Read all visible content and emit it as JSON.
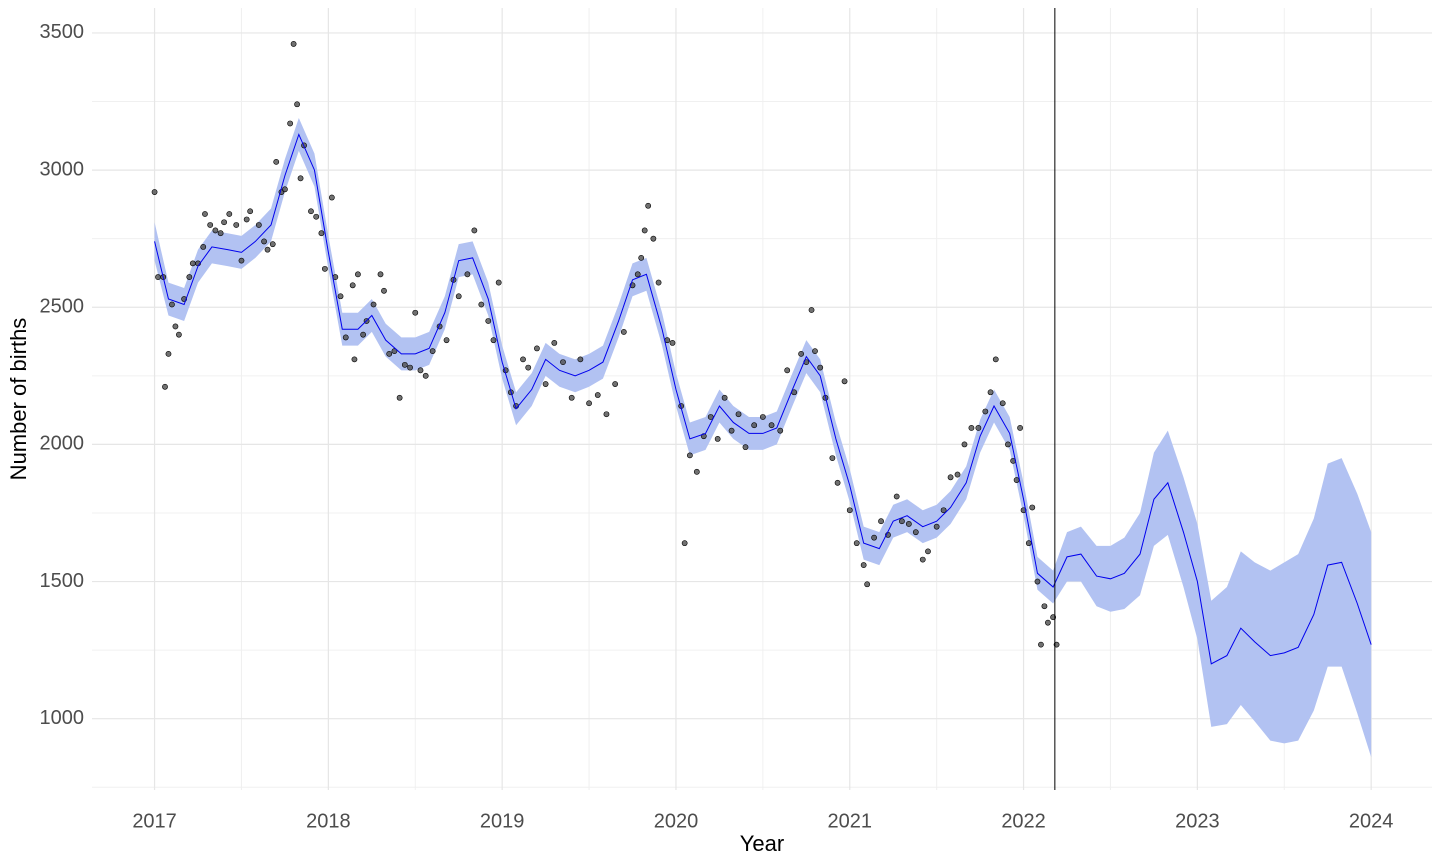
{
  "chart_data": {
    "type": "forecast",
    "x_label": "Year",
    "y_label": "Number of births",
    "xlim": [
      2016.64,
      2024.35
    ],
    "ylim": [
      740,
      3591
    ],
    "xticks": [
      2017,
      2018,
      2019,
      2020,
      2021,
      2022,
      2023,
      2024
    ],
    "yticks": [
      1000,
      1500,
      2000,
      2500,
      3000,
      3500
    ],
    "xminorticks": [
      2017.5,
      2018.5,
      2019.5,
      2020.5,
      2021.5,
      2022.5,
      2023.5
    ],
    "yminorticks": [
      750,
      1250,
      1750,
      2250,
      2750,
      3250
    ],
    "grid": true,
    "cutoff": 2022.18,
    "forecast": {
      "color": "#0000ee",
      "band_color": "#b2c2f2",
      "x": [
        2017,
        2017.08,
        2017.17,
        2017.25,
        2017.33,
        2017.42,
        2017.5,
        2017.58,
        2017.67,
        2017.75,
        2017.83,
        2017.92,
        2018,
        2018.08,
        2018.17,
        2018.25,
        2018.33,
        2018.42,
        2018.5,
        2018.58,
        2018.67,
        2018.75,
        2018.83,
        2018.92,
        2019,
        2019.08,
        2019.17,
        2019.25,
        2019.33,
        2019.42,
        2019.5,
        2019.58,
        2019.67,
        2019.75,
        2019.83,
        2019.92,
        2020,
        2020.08,
        2020.17,
        2020.25,
        2020.33,
        2020.42,
        2020.5,
        2020.58,
        2020.67,
        2020.75,
        2020.83,
        2020.92,
        2021,
        2021.08,
        2021.17,
        2021.25,
        2021.33,
        2021.42,
        2021.5,
        2021.58,
        2021.67,
        2021.75,
        2021.83,
        2021.92,
        2022,
        2022.08,
        2022.17,
        2022.25,
        2022.33,
        2022.42,
        2022.5,
        2022.58,
        2022.67,
        2022.75,
        2022.83,
        2022.92,
        2023,
        2023.08,
        2023.17,
        2023.25,
        2023.33,
        2023.42,
        2023.5,
        2023.58,
        2023.67,
        2023.75,
        2023.83,
        2023.92,
        2024
      ],
      "values": [
        2740,
        2530,
        2510,
        2650,
        2720,
        2710,
        2700,
        2740,
        2800,
        2980,
        3130,
        3000,
        2700,
        2420,
        2420,
        2470,
        2380,
        2330,
        2330,
        2350,
        2480,
        2670,
        2680,
        2530,
        2300,
        2130,
        2200,
        2310,
        2270,
        2250,
        2270,
        2300,
        2450,
        2600,
        2620,
        2420,
        2200,
        2020,
        2040,
        2140,
        2080,
        2040,
        2040,
        2060,
        2200,
        2320,
        2250,
        2020,
        1850,
        1640,
        1620,
        1720,
        1740,
        1700,
        1720,
        1770,
        1860,
        2030,
        2140,
        2040,
        1800,
        1530,
        1480,
        1590,
        1600,
        1520,
        1510,
        1530,
        1600,
        1800,
        1860,
        1680,
        1500,
        1200,
        1230,
        1330,
        1280,
        1230,
        1240,
        1260,
        1380,
        1560,
        1570,
        1420,
        1270
      ],
      "lower": [
        2670,
        2470,
        2450,
        2590,
        2660,
        2650,
        2640,
        2680,
        2740,
        2920,
        3070,
        2940,
        2640,
        2360,
        2360,
        2410,
        2320,
        2270,
        2270,
        2290,
        2420,
        2610,
        2620,
        2470,
        2240,
        2070,
        2140,
        2250,
        2210,
        2190,
        2210,
        2240,
        2390,
        2540,
        2560,
        2360,
        2140,
        1960,
        1980,
        2080,
        2020,
        1980,
        1980,
        2000,
        2140,
        2260,
        2190,
        1960,
        1790,
        1580,
        1560,
        1660,
        1680,
        1640,
        1660,
        1710,
        1800,
        1970,
        2080,
        1980,
        1740,
        1470,
        1420,
        1500,
        1500,
        1410,
        1390,
        1400,
        1450,
        1630,
        1670,
        1480,
        1290,
        970,
        980,
        1050,
        990,
        920,
        910,
        920,
        1030,
        1190,
        1190,
        1020,
        860
      ],
      "upper": [
        2810,
        2590,
        2570,
        2710,
        2780,
        2770,
        2760,
        2800,
        2860,
        3040,
        3190,
        3060,
        2760,
        2480,
        2480,
        2530,
        2440,
        2390,
        2390,
        2410,
        2540,
        2730,
        2740,
        2590,
        2360,
        2190,
        2260,
        2370,
        2330,
        2310,
        2330,
        2360,
        2510,
        2660,
        2680,
        2480,
        2260,
        2080,
        2100,
        2200,
        2140,
        2100,
        2100,
        2120,
        2260,
        2380,
        2310,
        2080,
        1910,
        1700,
        1680,
        1780,
        1800,
        1760,
        1780,
        1830,
        1920,
        2090,
        2200,
        2100,
        1860,
        1590,
        1540,
        1680,
        1700,
        1630,
        1630,
        1660,
        1750,
        1970,
        2050,
        1880,
        1710,
        1430,
        1480,
        1610,
        1570,
        1540,
        1570,
        1600,
        1730,
        1930,
        1950,
        1820,
        1680
      ]
    },
    "points": {
      "color": "#4d4d4d",
      "x": [
        2017.0,
        2017.02,
        2017.05,
        2017.06,
        2017.08,
        2017.1,
        2017.12,
        2017.14,
        2017.17,
        2017.2,
        2017.22,
        2017.25,
        2017.28,
        2017.29,
        2017.32,
        2017.35,
        2017.38,
        2017.4,
        2017.43,
        2017.47,
        2017.5,
        2017.53,
        2017.55,
        2017.6,
        2017.63,
        2017.65,
        2017.68,
        2017.7,
        2017.73,
        2017.75,
        2017.78,
        2017.8,
        2017.82,
        2017.84,
        2017.86,
        2017.9,
        2017.93,
        2017.96,
        2017.98,
        2018.02,
        2018.04,
        2018.07,
        2018.1,
        2018.14,
        2018.15,
        2018.17,
        2018.2,
        2018.22,
        2018.26,
        2018.3,
        2018.32,
        2018.35,
        2018.38,
        2018.41,
        2018.44,
        2018.47,
        2018.5,
        2018.53,
        2018.56,
        2018.6,
        2018.64,
        2018.68,
        2018.72,
        2018.75,
        2018.8,
        2018.84,
        2018.88,
        2018.92,
        2018.95,
        2018.98,
        2019.02,
        2019.05,
        2019.08,
        2019.12,
        2019.15,
        2019.2,
        2019.25,
        2019.3,
        2019.35,
        2019.4,
        2019.45,
        2019.5,
        2019.55,
        2019.6,
        2019.65,
        2019.7,
        2019.75,
        2019.78,
        2019.8,
        2019.82,
        2019.84,
        2019.87,
        2019.9,
        2019.95,
        2019.98,
        2020.03,
        2020.05,
        2020.08,
        2020.12,
        2020.16,
        2020.2,
        2020.24,
        2020.28,
        2020.32,
        2020.36,
        2020.4,
        2020.45,
        2020.5,
        2020.55,
        2020.6,
        2020.64,
        2020.68,
        2020.72,
        2020.75,
        2020.78,
        2020.8,
        2020.83,
        2020.86,
        2020.9,
        2020.93,
        2020.97,
        2021.0,
        2021.04,
        2021.08,
        2021.1,
        2021.14,
        2021.18,
        2021.22,
        2021.27,
        2021.3,
        2021.34,
        2021.38,
        2021.42,
        2021.45,
        2021.5,
        2021.54,
        2021.58,
        2021.62,
        2021.66,
        2021.7,
        2021.74,
        2021.78,
        2021.81,
        2021.84,
        2021.88,
        2021.91,
        2021.94,
        2021.96,
        2021.98,
        2022.0,
        2022.03,
        2022.05,
        2022.08,
        2022.1,
        2022.12,
        2022.14,
        2022.17,
        2022.19
      ],
      "values": [
        2920,
        2610,
        2610,
        2210,
        2330,
        2510,
        2430,
        2400,
        2530,
        2610,
        2660,
        2660,
        2720,
        2840,
        2800,
        2780,
        2770,
        2810,
        2840,
        2800,
        2670,
        2820,
        2850,
        2800,
        2740,
        2710,
        2730,
        3030,
        2920,
        2930,
        3170,
        3460,
        3240,
        2970,
        3090,
        2850,
        2830,
        2770,
        2640,
        2900,
        2610,
        2540,
        2390,
        2580,
        2310,
        2620,
        2400,
        2450,
        2510,
        2620,
        2560,
        2330,
        2340,
        2170,
        2290,
        2280,
        2480,
        2270,
        2250,
        2340,
        2430,
        2380,
        2600,
        2540,
        2620,
        2780,
        2510,
        2450,
        2380,
        2590,
        2270,
        2190,
        2140,
        2310,
        2280,
        2350,
        2220,
        2370,
        2300,
        2170,
        2310,
        2150,
        2180,
        2110,
        2220,
        2410,
        2580,
        2620,
        2680,
        2780,
        2870,
        2750,
        2590,
        2380,
        2370,
        2140,
        1640,
        1960,
        1900,
        2030,
        2100,
        2020,
        2170,
        2050,
        2110,
        1990,
        2070,
        2100,
        2070,
        2050,
        2270,
        2190,
        2330,
        2300,
        2490,
        2340,
        2280,
        2170,
        1950,
        1860,
        2230,
        1760,
        1640,
        1560,
        1490,
        1660,
        1720,
        1670,
        1810,
        1720,
        1710,
        1680,
        1580,
        1610,
        1700,
        1760,
        1880,
        1890,
        2000,
        2060,
        2060,
        2120,
        2190,
        2310,
        2150,
        2000,
        1940,
        1870,
        2060,
        1760,
        1640,
        1770,
        1500,
        1270,
        1410,
        1350,
        1370,
        1270
      ]
    }
  }
}
